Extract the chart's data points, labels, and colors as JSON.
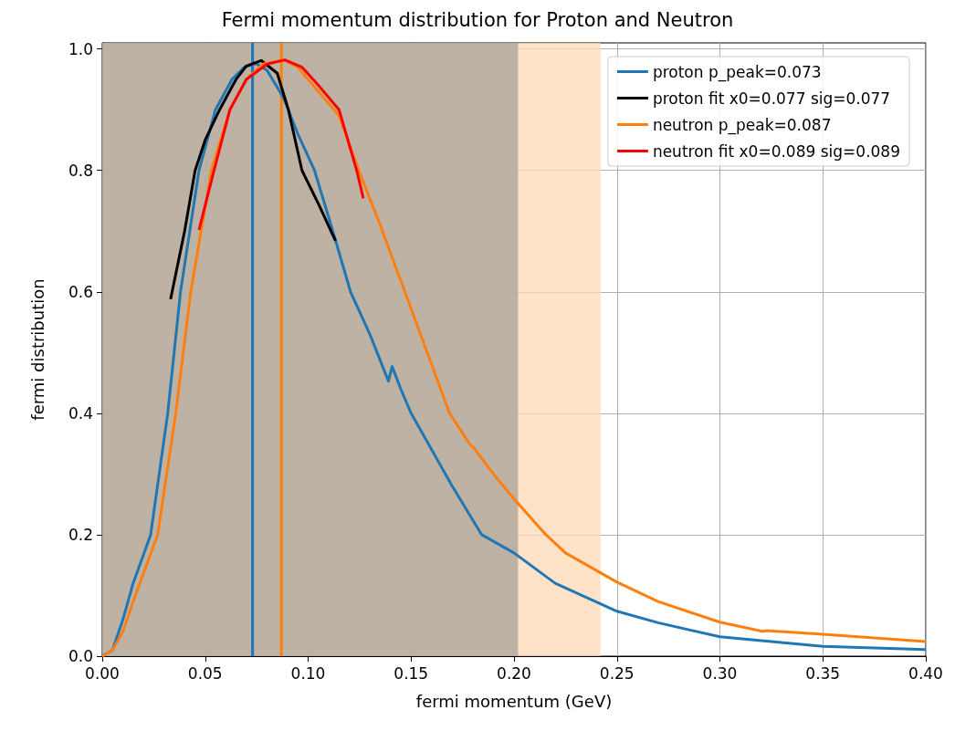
{
  "chart_data": {
    "type": "line",
    "title": "Fermi momentum distribution for Proton and Neutron",
    "xlabel": "fermi momentum (GeV)",
    "ylabel": "fermi distribution",
    "xlim": [
      0,
      0.4
    ],
    "ylim": [
      0,
      1.01
    ],
    "xticks": [
      {
        "value": 0,
        "label": "0.00"
      },
      0.05,
      {
        "value": 0.1,
        "label": "0.10"
      },
      0.15,
      {
        "value": 0.2,
        "label": "0.20"
      },
      0.25,
      {
        "value": 0.3,
        "label": "0.30"
      },
      0.35,
      {
        "value": 0.4,
        "label": "0.40"
      }
    ],
    "yticks": [
      {
        "value": 0,
        "label": "0.0"
      },
      0.2,
      0.4,
      0.6,
      0.8,
      {
        "value": 1,
        "label": "1.0"
      }
    ],
    "grid": true,
    "legend": "top right",
    "marker": "none",
    "line_style": "solid",
    "series": [
      {
        "name": "proton p_peak=0.073",
        "color": "#1f77b4",
        "x": [
          0,
          0.005,
          0.01,
          0.015,
          0.0235,
          0.0318,
          0.038,
          0.047,
          0.055,
          0.063,
          0.069,
          0.0748,
          0.08,
          0.088,
          0.095,
          0.1031,
          0.112,
          0.1206,
          0.13,
          0.139,
          0.1408,
          0.145,
          0.15,
          0.16,
          0.17,
          0.1843,
          0.2,
          0.22,
          0.25,
          0.27,
          0.3,
          0.35,
          0.4
        ],
        "values": [
          0,
          0.01,
          0.06,
          0.12,
          0.2,
          0.4,
          0.6,
          0.8,
          0.9,
          0.95,
          0.97,
          0.976,
          0.965,
          0.92,
          0.86,
          0.8,
          0.7,
          0.6,
          0.53,
          0.453,
          0.477,
          0.44,
          0.4,
          0.34,
          0.28,
          0.2,
          0.17,
          0.12,
          0.074,
          0.055,
          0.032,
          0.016,
          0.011
        ]
      },
      {
        "name": "proton fit x0=0.077 sig=0.077",
        "color": "#000000",
        "x": [
          0.0332,
          0.04,
          0.0451,
          0.05,
          0.057,
          0.065,
          0.07,
          0.0772,
          0.085,
          0.0904,
          0.097,
          0.105,
          0.1133
        ],
        "values": [
          0.588,
          0.7,
          0.8,
          0.85,
          0.9,
          0.95,
          0.972,
          0.981,
          0.96,
          0.9,
          0.8,
          0.745,
          0.684
        ]
      },
      {
        "name": "neutron p_peak=0.087",
        "color": "#ff7f0e",
        "x": [
          0,
          0.005,
          0.01,
          0.015,
          0.0269,
          0.0357,
          0.043,
          0.053,
          0.062,
          0.07,
          0.078,
          0.0883,
          0.095,
          0.105,
          0.115,
          0.1246,
          0.135,
          0.147,
          0.1687,
          0.1787,
          0.18,
          0.19,
          0.2,
          0.2155,
          0.225,
          0.25,
          0.27,
          0.3,
          0.3206,
          0.3226,
          0.35,
          0.4
        ],
        "values": [
          0,
          0.01,
          0.04,
          0.09,
          0.2,
          0.4,
          0.6,
          0.8,
          0.9,
          0.95,
          0.975,
          0.982,
          0.97,
          0.93,
          0.89,
          0.8,
          0.71,
          0.6,
          0.4,
          0.348,
          0.345,
          0.3,
          0.259,
          0.2,
          0.17,
          0.122,
          0.09,
          0.056,
          0.041,
          0.042,
          0.036,
          0.024
        ]
      },
      {
        "name": "neutron fit x0=0.089 sig=0.089",
        "color": "#ff0000",
        "x": [
          0.047,
          0.0543,
          0.062,
          0.07,
          0.08,
          0.0887,
          0.097,
          0.105,
          0.115,
          0.1236,
          0.1268
        ],
        "values": [
          0.702,
          0.8,
          0.9,
          0.95,
          0.975,
          0.982,
          0.97,
          0.94,
          0.9,
          0.8,
          0.754
        ]
      }
    ],
    "ref_lines": [
      {
        "axis": "x",
        "value": 0.073,
        "color": "#1f77b4"
      },
      {
        "axis": "x",
        "value": 0.087,
        "color": "#ff7f0e"
      }
    ],
    "bands": [
      {
        "axis": "x",
        "from": 0,
        "to": 0.242,
        "color": "#ffd9b5"
      },
      {
        "axis": "x",
        "from": 0,
        "to": 0.202,
        "color": "#a8a29a"
      }
    ]
  }
}
